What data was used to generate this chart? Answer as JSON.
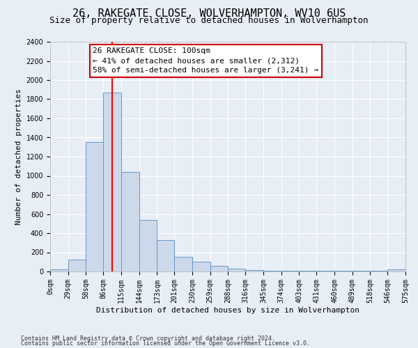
{
  "title": "26, RAKEGATE CLOSE, WOLVERHAMPTON, WV10 6US",
  "subtitle": "Size of property relative to detached houses in Wolverhampton",
  "xlabel": "Distribution of detached houses by size in Wolverhampton",
  "ylabel": "Number of detached properties",
  "bar_values": [
    20,
    125,
    1350,
    1870,
    1040,
    540,
    330,
    155,
    100,
    60,
    30,
    15,
    5,
    5,
    5,
    5,
    5,
    5,
    5,
    20
  ],
  "bin_labels": [
    "0sqm",
    "29sqm",
    "58sqm",
    "86sqm",
    "115sqm",
    "144sqm",
    "173sqm",
    "201sqm",
    "230sqm",
    "259sqm",
    "288sqm",
    "316sqm",
    "345sqm",
    "374sqm",
    "403sqm",
    "431sqm",
    "460sqm",
    "489sqm",
    "518sqm",
    "546sqm",
    "575sqm"
  ],
  "bin_edges": [
    0,
    29,
    58,
    86,
    115,
    144,
    173,
    201,
    230,
    259,
    288,
    316,
    345,
    374,
    403,
    431,
    460,
    489,
    518,
    546,
    575
  ],
  "bar_color": "#ccd9ea",
  "bar_edge_color": "#6699cc",
  "ylim": [
    0,
    2400
  ],
  "yticks": [
    0,
    200,
    400,
    600,
    800,
    1000,
    1200,
    1400,
    1600,
    1800,
    2000,
    2200,
    2400
  ],
  "red_line_x": 100,
  "annotation_title": "26 RAKEGATE CLOSE: 100sqm",
  "annotation_line1": "← 41% of detached houses are smaller (2,312)",
  "annotation_line2": "58% of semi-detached houses are larger (3,241) →",
  "annotation_box_color": "#ffffff",
  "annotation_box_edge": "#cc0000",
  "footer_line1": "Contains HM Land Registry data © Crown copyright and database right 2024.",
  "footer_line2": "Contains public sector information licensed under the Open Government Licence v3.0.",
  "background_color": "#e8eef5",
  "grid_color": "#ffffff",
  "title_fontsize": 11,
  "subtitle_fontsize": 9,
  "xlabel_fontsize": 8,
  "ylabel_fontsize": 8,
  "tick_fontsize": 7,
  "annot_fontsize": 8
}
